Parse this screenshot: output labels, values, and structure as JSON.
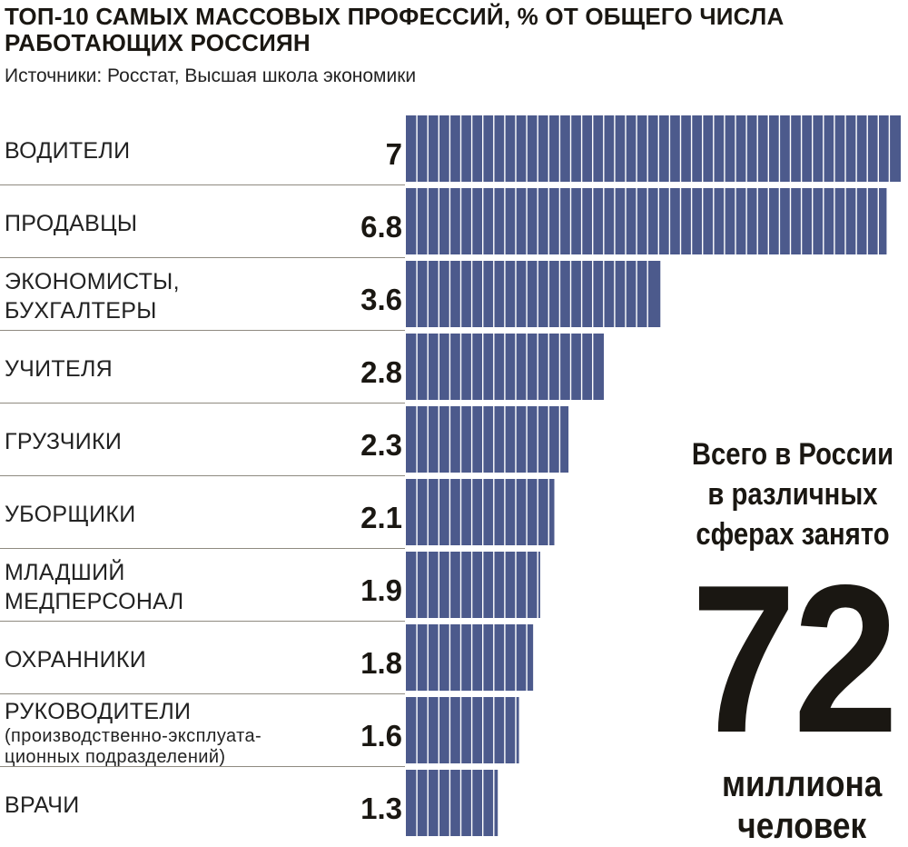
{
  "title": "ТОП-10 САМЫХ МАССОВЫХ ПРОФЕССИЙ, % ОТ ОБЩЕГО ЧИСЛА РАБОТАЮЩИХ РОССИЯН",
  "subtitle": "Источники: Росстат, Высшая школа экономики",
  "colors": {
    "bar": "#4c5a8c",
    "text": "#1a1712",
    "divider": "#8f8a80"
  },
  "chart_data": {
    "type": "bar",
    "orientation": "horizontal",
    "categories": [
      "ВОДИТЕЛИ",
      "ПРОДАВЦЫ",
      "ЭКОНОМИСТЫ, БУХГАЛТЕРЫ",
      "УЧИТЕЛЯ",
      "ГРУЗЧИКИ",
      "УБОРЩИКИ",
      "МЛАДШИЙ МЕДПЕРСОНАЛ",
      "ОХРАННИКИ",
      "РУКОВОДИТЕЛИ (производственно-эксплуата-ционных подразделений)",
      "ВРАЧИ"
    ],
    "values": [
      7,
      6.8,
      3.6,
      2.8,
      2.3,
      2.1,
      1.9,
      1.8,
      1.6,
      1.3
    ],
    "value_labels": [
      "7",
      "6.8",
      "3.6",
      "2.8",
      "2.3",
      "2.1",
      "1.9",
      "1.8",
      "1.6",
      "1.3"
    ],
    "title": "ТОП-10 САМЫХ МАССОВЫХ ПРОФЕССИЙ, % ОТ ОБЩЕГО ЧИСЛА РАБОТАЮЩИХ РОССИЯН",
    "xlabel": "",
    "ylabel": "",
    "xlim": [
      0,
      7
    ],
    "grid": false,
    "legend": "none"
  },
  "rows": [
    {
      "lines": [
        "ВОДИТЕЛИ"
      ],
      "sub": []
    },
    {
      "lines": [
        "ПРОДАВЦЫ"
      ],
      "sub": []
    },
    {
      "lines": [
        "ЭКОНОМИСТЫ,",
        "БУХГАЛТЕРЫ"
      ],
      "sub": []
    },
    {
      "lines": [
        "УЧИТЕЛЯ"
      ],
      "sub": []
    },
    {
      "lines": [
        "ГРУЗЧИКИ"
      ],
      "sub": []
    },
    {
      "lines": [
        "УБОРЩИКИ"
      ],
      "sub": []
    },
    {
      "lines": [
        "МЛАДШИЙ",
        "МЕДПЕРСОНАЛ"
      ],
      "sub": []
    },
    {
      "lines": [
        "ОХРАННИКИ"
      ],
      "sub": []
    },
    {
      "lines": [
        "РУКОВОДИТЕЛИ"
      ],
      "sub": [
        "(производственно-эксплуата-",
        "ционных подразделений)"
      ]
    },
    {
      "lines": [
        "ВРАЧИ"
      ],
      "sub": []
    }
  ],
  "total": {
    "text_lines": [
      "Всего в России",
      "в различных",
      "сферах занято"
    ],
    "number": "72",
    "unit_lines": [
      "миллиона",
      "человек"
    ]
  }
}
